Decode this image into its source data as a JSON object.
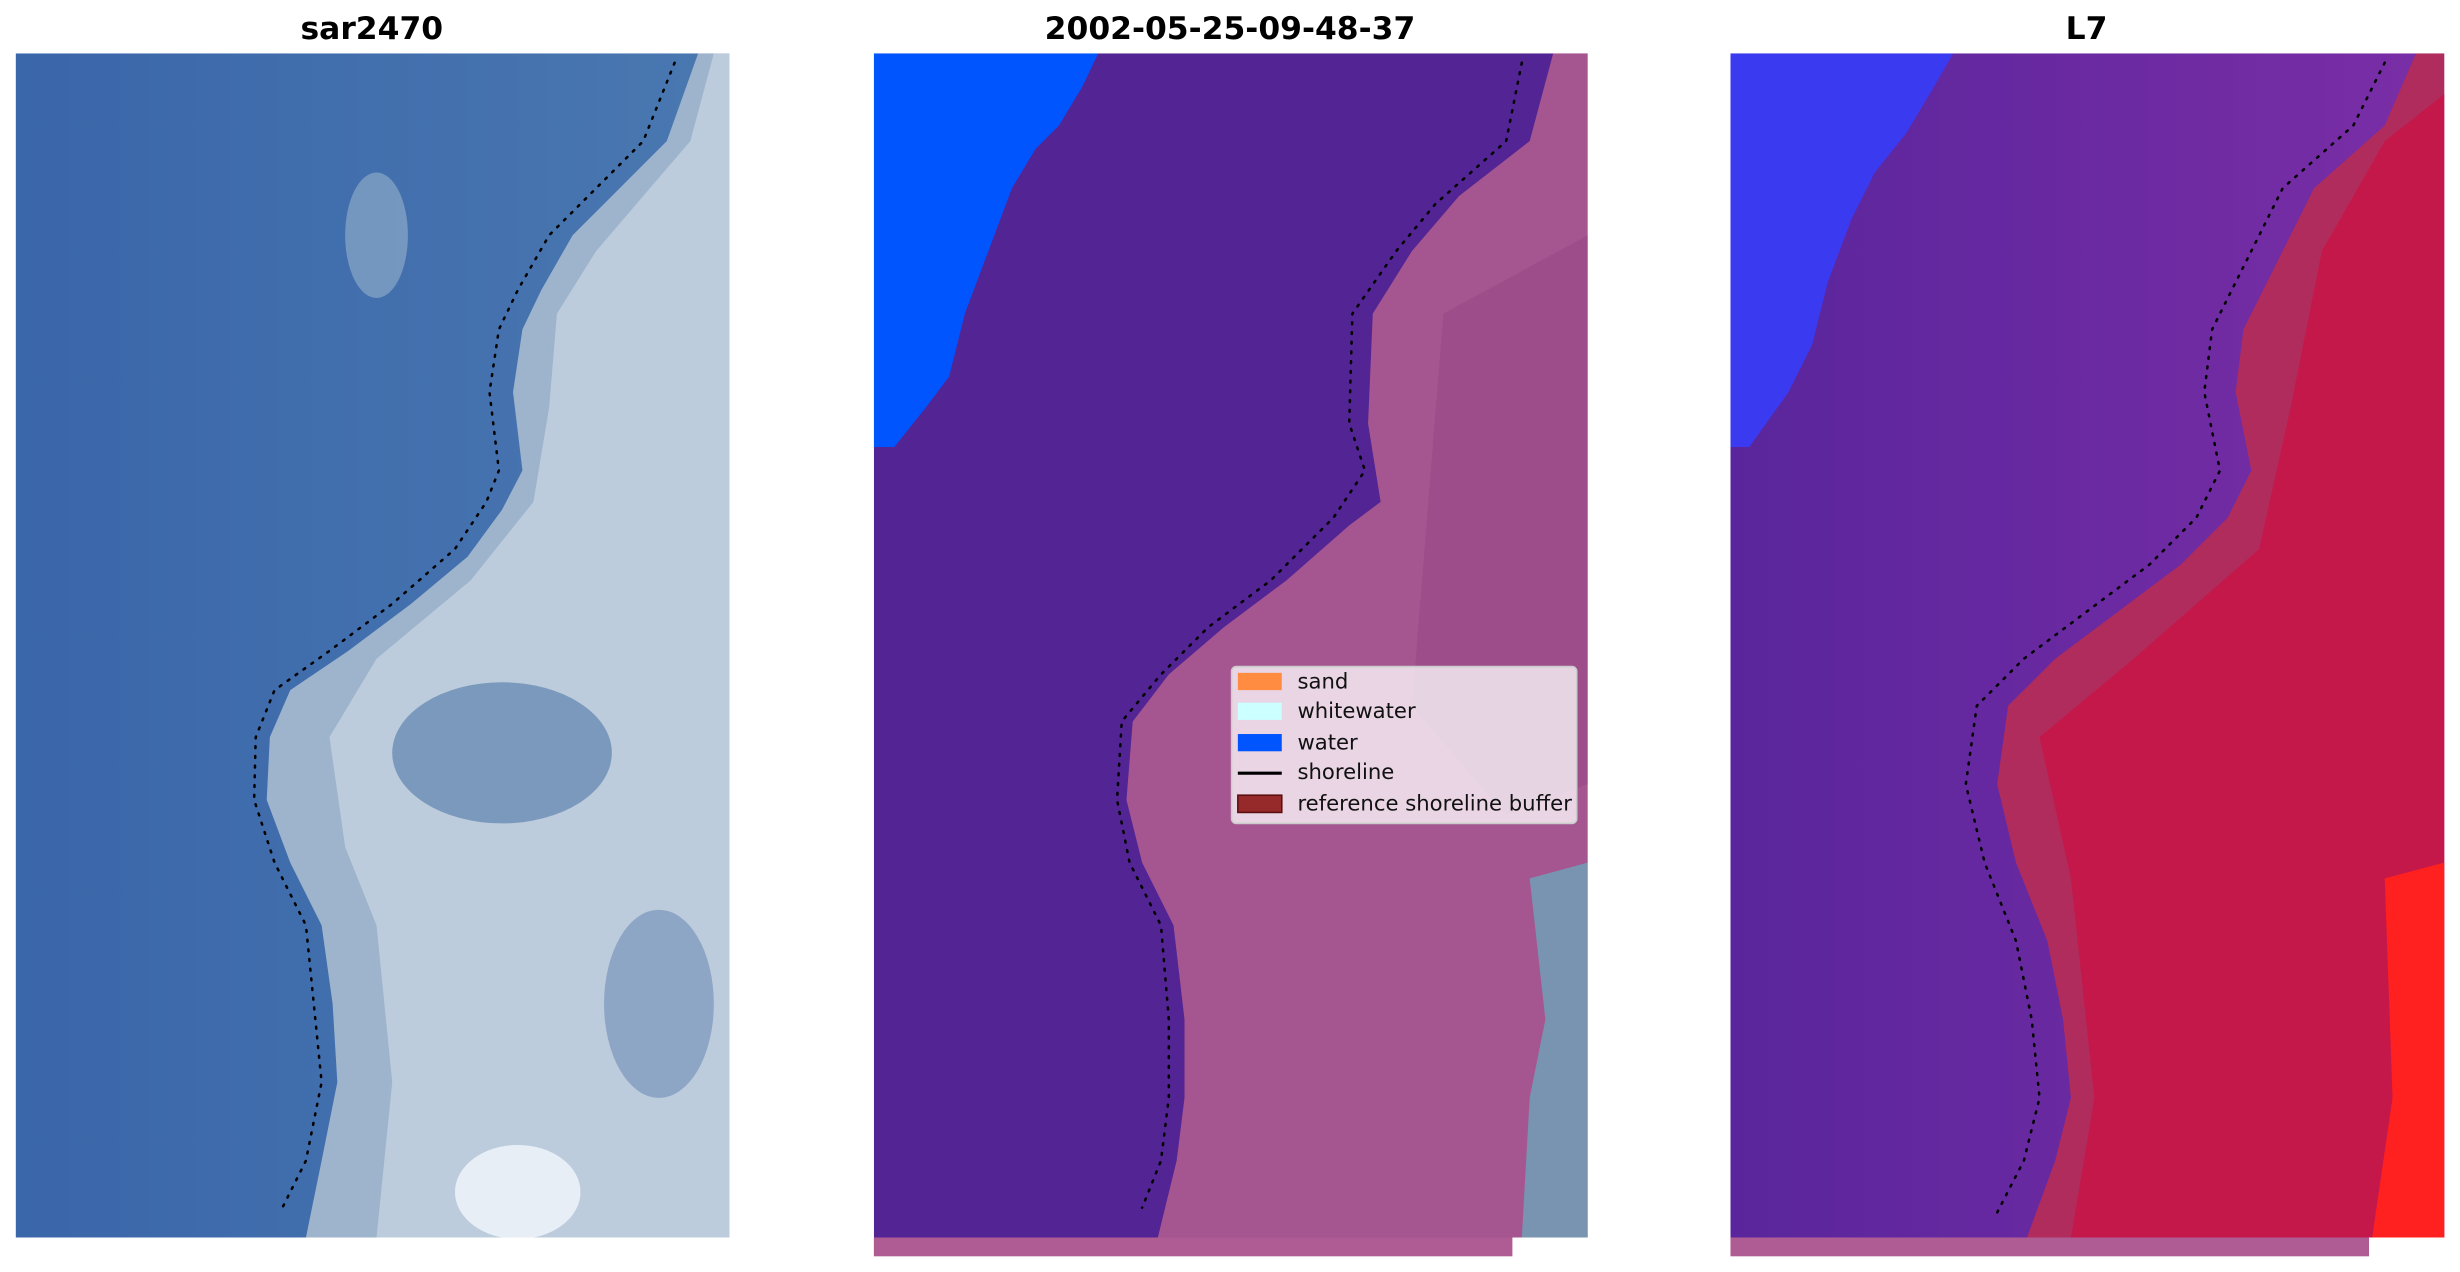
{
  "panels": [
    {
      "title": "sar2470"
    },
    {
      "title": "2002-05-25-09-48-37"
    },
    {
      "title": "L7"
    }
  ],
  "legend": {
    "items": [
      {
        "label": "sand"
      },
      {
        "label": "whitewater"
      },
      {
        "label": "water"
      },
      {
        "label": "shoreline"
      },
      {
        "label": "reference shoreline buffer"
      }
    ]
  }
}
